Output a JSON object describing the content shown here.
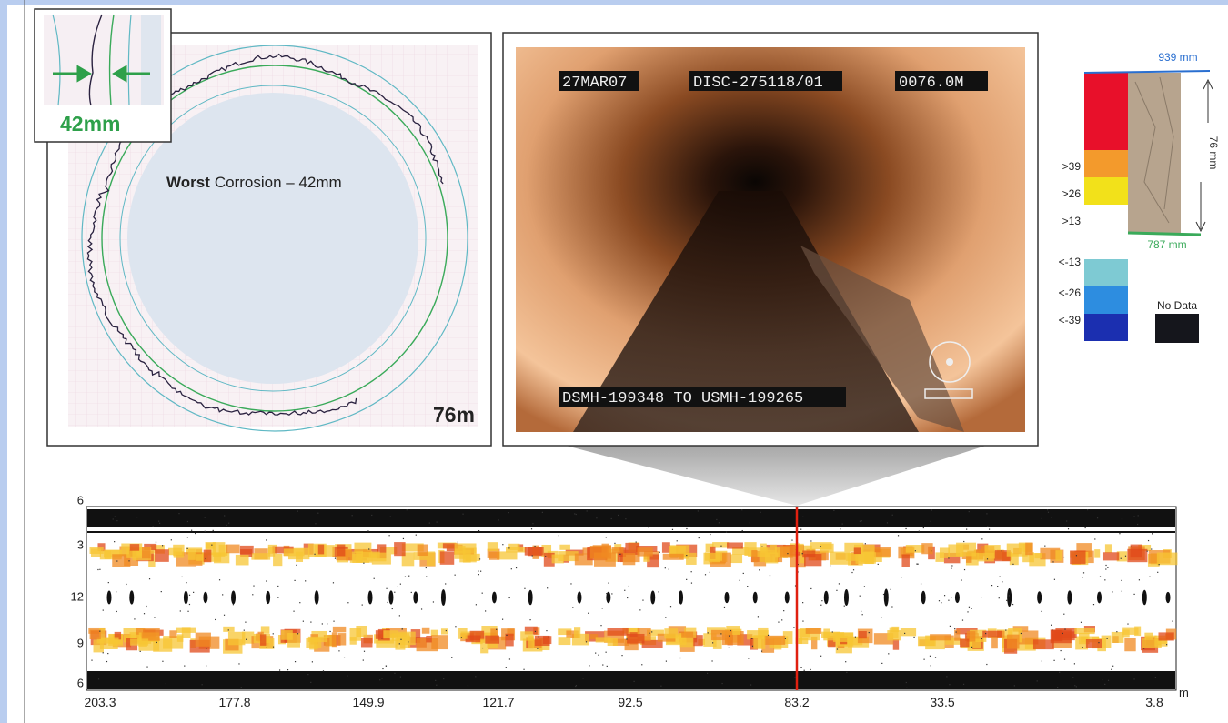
{
  "detail_inset": {
    "label": "42mm"
  },
  "cross_section": {
    "caption_bold": "Worst",
    "caption": "Corrosion – 42mm",
    "distance": "76m"
  },
  "video": {
    "date": "27MAR07",
    "disc": "DISC-275118/01",
    "counter": "0076.0M",
    "run": "DSMH-199348 TO USMH-199265"
  },
  "legend": {
    "top": "939 mm",
    "bottom": "787 mm",
    "span": "76 mm",
    "classes": [
      ">39",
      ">26",
      ">13",
      "<-13",
      "<-26",
      "<-39"
    ],
    "no_data": "No Data"
  },
  "profile": {
    "clock_labels": [
      "6",
      "3",
      "12",
      "9",
      "6"
    ],
    "distance_labels": [
      "203.3",
      "177.8",
      "149.9",
      "121.7",
      "92.5",
      "83.2",
      "33.5",
      "3.8"
    ],
    "unit": "m"
  }
}
